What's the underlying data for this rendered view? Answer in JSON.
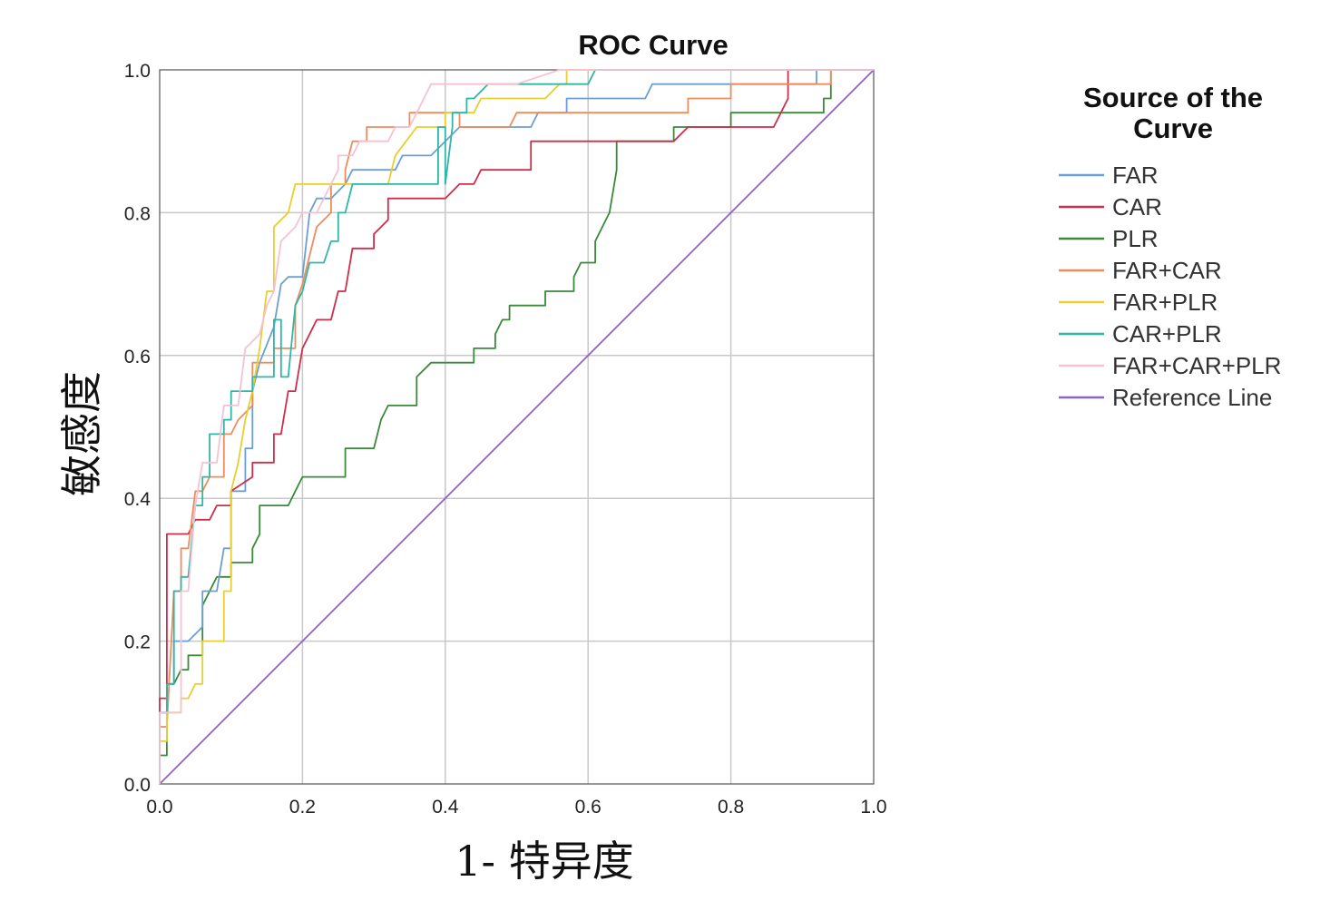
{
  "chart_data": {
    "type": "line",
    "title": "ROC Curve",
    "xlabel": "1- 特异度",
    "ylabel": "敏感度",
    "xlim": [
      0,
      1
    ],
    "ylim": [
      0,
      1
    ],
    "xticks": [
      "0.0",
      "0.2",
      "0.4",
      "0.6",
      "0.8",
      "1.0"
    ],
    "yticks": [
      "0.0",
      "0.2",
      "0.4",
      "0.6",
      "0.8",
      "1.0"
    ],
    "grid": true,
    "legend": {
      "title_line1": "Source of the",
      "title_line2": "Curve",
      "placement": "right"
    },
    "series": [
      {
        "name": "FAR",
        "color": "#6b9fd4",
        "points": [
          [
            0,
            0
          ],
          [
            0,
            0.1
          ],
          [
            0.01,
            0.1
          ],
          [
            0.01,
            0.14
          ],
          [
            0.02,
            0.14
          ],
          [
            0.02,
            0.2
          ],
          [
            0.04,
            0.2
          ],
          [
            0.06,
            0.22
          ],
          [
            0.06,
            0.27
          ],
          [
            0.08,
            0.27
          ],
          [
            0.09,
            0.33
          ],
          [
            0.1,
            0.33
          ],
          [
            0.1,
            0.41
          ],
          [
            0.12,
            0.41
          ],
          [
            0.12,
            0.47
          ],
          [
            0.13,
            0.47
          ],
          [
            0.13,
            0.55
          ],
          [
            0.14,
            0.59
          ],
          [
            0.16,
            0.64
          ],
          [
            0.17,
            0.7
          ],
          [
            0.18,
            0.71
          ],
          [
            0.2,
            0.71
          ],
          [
            0.21,
            0.8
          ],
          [
            0.22,
            0.82
          ],
          [
            0.24,
            0.82
          ],
          [
            0.26,
            0.84
          ],
          [
            0.27,
            0.86
          ],
          [
            0.33,
            0.86
          ],
          [
            0.34,
            0.88
          ],
          [
            0.38,
            0.88
          ],
          [
            0.4,
            0.9
          ],
          [
            0.42,
            0.92
          ],
          [
            0.52,
            0.92
          ],
          [
            0.53,
            0.94
          ],
          [
            0.57,
            0.94
          ],
          [
            0.57,
            0.96
          ],
          [
            0.68,
            0.96
          ],
          [
            0.69,
            0.98
          ],
          [
            0.92,
            0.98
          ],
          [
            0.92,
            1.0
          ],
          [
            1,
            1
          ]
        ]
      },
      {
        "name": "CAR",
        "color": "#cc2f4a",
        "points": [
          [
            0,
            0
          ],
          [
            0,
            0.12
          ],
          [
            0.01,
            0.12
          ],
          [
            0.01,
            0.35
          ],
          [
            0.04,
            0.35
          ],
          [
            0.05,
            0.37
          ],
          [
            0.07,
            0.37
          ],
          [
            0.08,
            0.39
          ],
          [
            0.1,
            0.39
          ],
          [
            0.1,
            0.41
          ],
          [
            0.13,
            0.43
          ],
          [
            0.13,
            0.45
          ],
          [
            0.16,
            0.45
          ],
          [
            0.16,
            0.49
          ],
          [
            0.17,
            0.49
          ],
          [
            0.18,
            0.55
          ],
          [
            0.19,
            0.55
          ],
          [
            0.2,
            0.61
          ],
          [
            0.21,
            0.63
          ],
          [
            0.22,
            0.65
          ],
          [
            0.24,
            0.65
          ],
          [
            0.25,
            0.69
          ],
          [
            0.26,
            0.69
          ],
          [
            0.27,
            0.75
          ],
          [
            0.3,
            0.75
          ],
          [
            0.3,
            0.77
          ],
          [
            0.32,
            0.79
          ],
          [
            0.32,
            0.82
          ],
          [
            0.4,
            0.82
          ],
          [
            0.42,
            0.84
          ],
          [
            0.44,
            0.84
          ],
          [
            0.45,
            0.86
          ],
          [
            0.52,
            0.86
          ],
          [
            0.52,
            0.9
          ],
          [
            0.72,
            0.9
          ],
          [
            0.74,
            0.92
          ],
          [
            0.86,
            0.92
          ],
          [
            0.88,
            0.96
          ],
          [
            0.88,
            1.0
          ],
          [
            1,
            1
          ]
        ]
      },
      {
        "name": "PLR",
        "color": "#3a8a3a",
        "points": [
          [
            0,
            0
          ],
          [
            0,
            0.04
          ],
          [
            0.01,
            0.04
          ],
          [
            0.01,
            0.08
          ],
          [
            0.01,
            0.14
          ],
          [
            0.02,
            0.14
          ],
          [
            0.03,
            0.16
          ],
          [
            0.04,
            0.16
          ],
          [
            0.04,
            0.18
          ],
          [
            0.06,
            0.18
          ],
          [
            0.06,
            0.25
          ],
          [
            0.07,
            0.27
          ],
          [
            0.08,
            0.29
          ],
          [
            0.1,
            0.29
          ],
          [
            0.1,
            0.31
          ],
          [
            0.13,
            0.31
          ],
          [
            0.13,
            0.33
          ],
          [
            0.14,
            0.35
          ],
          [
            0.14,
            0.39
          ],
          [
            0.18,
            0.39
          ],
          [
            0.19,
            0.41
          ],
          [
            0.2,
            0.43
          ],
          [
            0.26,
            0.43
          ],
          [
            0.26,
            0.47
          ],
          [
            0.3,
            0.47
          ],
          [
            0.31,
            0.51
          ],
          [
            0.32,
            0.53
          ],
          [
            0.36,
            0.53
          ],
          [
            0.36,
            0.57
          ],
          [
            0.38,
            0.59
          ],
          [
            0.44,
            0.59
          ],
          [
            0.44,
            0.61
          ],
          [
            0.47,
            0.61
          ],
          [
            0.47,
            0.63
          ],
          [
            0.48,
            0.65
          ],
          [
            0.49,
            0.65
          ],
          [
            0.49,
            0.67
          ],
          [
            0.54,
            0.67
          ],
          [
            0.54,
            0.69
          ],
          [
            0.58,
            0.69
          ],
          [
            0.58,
            0.71
          ],
          [
            0.59,
            0.73
          ],
          [
            0.61,
            0.73
          ],
          [
            0.61,
            0.76
          ],
          [
            0.62,
            0.78
          ],
          [
            0.63,
            0.8
          ],
          [
            0.64,
            0.86
          ],
          [
            0.64,
            0.9
          ],
          [
            0.72,
            0.9
          ],
          [
            0.72,
            0.92
          ],
          [
            0.8,
            0.92
          ],
          [
            0.8,
            0.94
          ],
          [
            0.93,
            0.94
          ],
          [
            0.93,
            0.96
          ],
          [
            0.94,
            0.96
          ],
          [
            0.94,
            1.0
          ],
          [
            1,
            1
          ]
        ]
      },
      {
        "name": "FAR+CAR",
        "color": "#ee8c5c",
        "points": [
          [
            0,
            0
          ],
          [
            0,
            0.08
          ],
          [
            0.01,
            0.08
          ],
          [
            0.02,
            0.27
          ],
          [
            0.03,
            0.27
          ],
          [
            0.03,
            0.33
          ],
          [
            0.04,
            0.33
          ],
          [
            0.05,
            0.41
          ],
          [
            0.06,
            0.41
          ],
          [
            0.07,
            0.43
          ],
          [
            0.09,
            0.43
          ],
          [
            0.09,
            0.49
          ],
          [
            0.1,
            0.49
          ],
          [
            0.11,
            0.51
          ],
          [
            0.13,
            0.53
          ],
          [
            0.13,
            0.59
          ],
          [
            0.16,
            0.59
          ],
          [
            0.16,
            0.61
          ],
          [
            0.19,
            0.61
          ],
          [
            0.19,
            0.67
          ],
          [
            0.2,
            0.7
          ],
          [
            0.22,
            0.78
          ],
          [
            0.24,
            0.8
          ],
          [
            0.24,
            0.84
          ],
          [
            0.26,
            0.84
          ],
          [
            0.26,
            0.86
          ],
          [
            0.27,
            0.9
          ],
          [
            0.29,
            0.9
          ],
          [
            0.29,
            0.92
          ],
          [
            0.35,
            0.92
          ],
          [
            0.35,
            0.94
          ],
          [
            0.42,
            0.94
          ],
          [
            0.42,
            0.92
          ],
          [
            0.45,
            0.92
          ],
          [
            0.49,
            0.92
          ],
          [
            0.5,
            0.94
          ],
          [
            0.74,
            0.94
          ],
          [
            0.74,
            0.96
          ],
          [
            0.8,
            0.96
          ],
          [
            0.8,
            0.98
          ],
          [
            0.94,
            0.98
          ],
          [
            0.94,
            1.0
          ],
          [
            1,
            1
          ]
        ]
      },
      {
        "name": "FAR+PLR",
        "color": "#e6cf2e",
        "points": [
          [
            0,
            0
          ],
          [
            0,
            0.06
          ],
          [
            0.01,
            0.06
          ],
          [
            0.01,
            0.1
          ],
          [
            0.03,
            0.1
          ],
          [
            0.03,
            0.12
          ],
          [
            0.04,
            0.12
          ],
          [
            0.05,
            0.14
          ],
          [
            0.06,
            0.14
          ],
          [
            0.06,
            0.2
          ],
          [
            0.09,
            0.2
          ],
          [
            0.09,
            0.27
          ],
          [
            0.1,
            0.27
          ],
          [
            0.1,
            0.41
          ],
          [
            0.11,
            0.45
          ],
          [
            0.12,
            0.51
          ],
          [
            0.13,
            0.55
          ],
          [
            0.14,
            0.61
          ],
          [
            0.15,
            0.69
          ],
          [
            0.16,
            0.69
          ],
          [
            0.16,
            0.78
          ],
          [
            0.18,
            0.8
          ],
          [
            0.19,
            0.84
          ],
          [
            0.24,
            0.84
          ],
          [
            0.27,
            0.84
          ],
          [
            0.32,
            0.84
          ],
          [
            0.33,
            0.88
          ],
          [
            0.36,
            0.92
          ],
          [
            0.4,
            0.92
          ],
          [
            0.4,
            0.94
          ],
          [
            0.44,
            0.94
          ],
          [
            0.45,
            0.96
          ],
          [
            0.54,
            0.96
          ],
          [
            0.56,
            0.98
          ],
          [
            0.57,
            0.98
          ],
          [
            0.57,
            1.0
          ],
          [
            1,
            1
          ]
        ]
      },
      {
        "name": "CAR+PLR",
        "color": "#2fb6a6",
        "points": [
          [
            0,
            0
          ],
          [
            0,
            0.1
          ],
          [
            0.01,
            0.1
          ],
          [
            0.01,
            0.14
          ],
          [
            0.02,
            0.14
          ],
          [
            0.02,
            0.27
          ],
          [
            0.03,
            0.27
          ],
          [
            0.03,
            0.29
          ],
          [
            0.04,
            0.29
          ],
          [
            0.05,
            0.39
          ],
          [
            0.06,
            0.39
          ],
          [
            0.06,
            0.43
          ],
          [
            0.07,
            0.43
          ],
          [
            0.07,
            0.49
          ],
          [
            0.09,
            0.49
          ],
          [
            0.09,
            0.51
          ],
          [
            0.1,
            0.51
          ],
          [
            0.1,
            0.55
          ],
          [
            0.13,
            0.55
          ],
          [
            0.13,
            0.57
          ],
          [
            0.16,
            0.57
          ],
          [
            0.16,
            0.65
          ],
          [
            0.17,
            0.65
          ],
          [
            0.17,
            0.57
          ],
          [
            0.18,
            0.57
          ],
          [
            0.19,
            0.67
          ],
          [
            0.2,
            0.69
          ],
          [
            0.21,
            0.73
          ],
          [
            0.23,
            0.73
          ],
          [
            0.24,
            0.76
          ],
          [
            0.25,
            0.76
          ],
          [
            0.25,
            0.8
          ],
          [
            0.26,
            0.8
          ],
          [
            0.27,
            0.84
          ],
          [
            0.39,
            0.84
          ],
          [
            0.39,
            0.92
          ],
          [
            0.4,
            0.92
          ],
          [
            0.4,
            0.84
          ],
          [
            0.41,
            0.92
          ],
          [
            0.41,
            0.94
          ],
          [
            0.43,
            0.94
          ],
          [
            0.43,
            0.96
          ],
          [
            0.44,
            0.96
          ],
          [
            0.46,
            0.98
          ],
          [
            0.6,
            0.98
          ],
          [
            0.61,
            1.0
          ],
          [
            1,
            1
          ]
        ]
      },
      {
        "name": "FAR+CAR+PLR",
        "color": "#f5c2d4",
        "points": [
          [
            0,
            0
          ],
          [
            0,
            0.1
          ],
          [
            0.03,
            0.1
          ],
          [
            0.03,
            0.27
          ],
          [
            0.04,
            0.27
          ],
          [
            0.05,
            0.39
          ],
          [
            0.06,
            0.45
          ],
          [
            0.08,
            0.45
          ],
          [
            0.09,
            0.53
          ],
          [
            0.11,
            0.53
          ],
          [
            0.12,
            0.61
          ],
          [
            0.14,
            0.63
          ],
          [
            0.15,
            0.67
          ],
          [
            0.16,
            0.69
          ],
          [
            0.17,
            0.76
          ],
          [
            0.19,
            0.78
          ],
          [
            0.2,
            0.8
          ],
          [
            0.22,
            0.8
          ],
          [
            0.24,
            0.84
          ],
          [
            0.25,
            0.86
          ],
          [
            0.25,
            0.88
          ],
          [
            0.27,
            0.88
          ],
          [
            0.28,
            0.9
          ],
          [
            0.32,
            0.9
          ],
          [
            0.33,
            0.92
          ],
          [
            0.35,
            0.92
          ],
          [
            0.37,
            0.96
          ],
          [
            0.38,
            0.98
          ],
          [
            0.5,
            0.98
          ],
          [
            0.56,
            1.0
          ],
          [
            1,
            1
          ]
        ]
      },
      {
        "name": "Reference Line",
        "color": "#8e63c4",
        "points": [
          [
            0,
            0
          ],
          [
            1,
            1
          ]
        ]
      }
    ]
  }
}
